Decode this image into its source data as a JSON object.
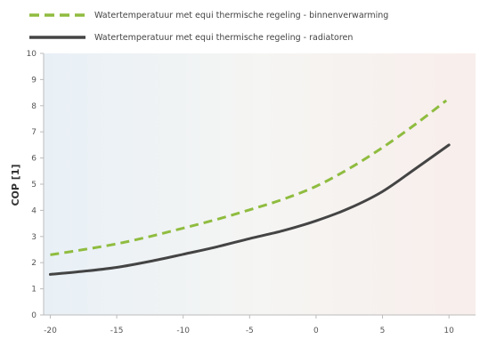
{
  "chart_data": {
    "type": "line",
    "title": "",
    "xlabel": "",
    "ylabel": "COP [1]",
    "xlim": [
      -20.5,
      12
    ],
    "ylim": [
      0,
      10
    ],
    "x_ticks": [
      -20,
      -15,
      -10,
      -5,
      0,
      5,
      10
    ],
    "y_ticks": [
      0,
      1,
      2,
      3,
      4,
      5,
      6,
      7,
      8,
      9,
      10
    ],
    "x_tick_labels": [
      "-20",
      "-15",
      "-10",
      "-5",
      "0",
      "5",
      "10"
    ],
    "y_tick_labels": [
      "0",
      "1",
      "2",
      "3",
      "4",
      "5",
      "6",
      "7",
      "8",
      "9",
      "10"
    ],
    "grid": false,
    "legend_position": "top",
    "background_gradient": [
      "#e8f0f6",
      "#f8eeeb"
    ],
    "series": [
      {
        "name": "Watertemperatuur met equi thermische regeling - binnenverwarming",
        "color": "#8fbc3f",
        "style": "dashed",
        "x": [
          -20,
          -17.5,
          -15,
          -12.5,
          -10,
          -7.5,
          -5,
          -2.5,
          0,
          2.5,
          5,
          7.5,
          9.8
        ],
        "y": [
          2.3,
          2.5,
          2.72,
          3.0,
          3.32,
          3.65,
          4.02,
          4.42,
          4.92,
          5.6,
          6.4,
          7.3,
          8.2
        ]
      },
      {
        "name": "Watertemperatuur met equi thermische regeling - radiatoren",
        "color": "#444444",
        "style": "solid",
        "x": [
          -20,
          -17.5,
          -15,
          -12.5,
          -10,
          -7.5,
          -5,
          -2.5,
          0,
          2.5,
          5,
          7.5,
          10
        ],
        "y": [
          1.55,
          1.67,
          1.82,
          2.05,
          2.32,
          2.6,
          2.92,
          3.22,
          3.6,
          4.08,
          4.72,
          5.6,
          6.5
        ]
      }
    ]
  }
}
